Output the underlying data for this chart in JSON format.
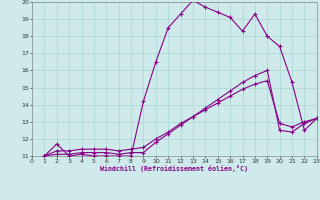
{
  "xlabel": "Windchill (Refroidissement éolien,°C)",
  "xlim": [
    0,
    23
  ],
  "ylim": [
    11,
    20
  ],
  "xticks": [
    0,
    1,
    2,
    3,
    4,
    5,
    6,
    7,
    8,
    9,
    10,
    11,
    12,
    13,
    14,
    15,
    16,
    17,
    18,
    19,
    20,
    21,
    22,
    23
  ],
  "yticks": [
    11,
    12,
    13,
    14,
    15,
    16,
    17,
    18,
    19,
    20
  ],
  "background_color": "#ceeaea",
  "grid_color": "#b0d8d8",
  "line_color": "#880088",
  "lines": [
    {
      "x": [
        1,
        2,
        3,
        4,
        5,
        6,
        7,
        8,
        9,
        10,
        11,
        12,
        13,
        14,
        15,
        16,
        17,
        18,
        19,
        20,
        21,
        22,
        23
      ],
      "y": [
        11.0,
        11.7,
        11.0,
        11.1,
        11.0,
        11.0,
        11.0,
        11.0,
        14.2,
        16.5,
        18.5,
        19.3,
        20.1,
        19.7,
        19.4,
        19.1,
        18.3,
        19.3,
        18.0,
        17.4,
        15.3,
        12.5,
        13.2
      ]
    },
    {
      "x": [
        1,
        2,
        3,
        4,
        5,
        6,
        7,
        8,
        9,
        10,
        11,
        12,
        13,
        14,
        15,
        16,
        17,
        18,
        19,
        20,
        21,
        22,
        23
      ],
      "y": [
        11.0,
        11.1,
        11.1,
        11.2,
        11.2,
        11.2,
        11.1,
        11.2,
        11.2,
        11.8,
        12.3,
        12.8,
        13.3,
        13.8,
        14.3,
        14.8,
        15.3,
        15.7,
        16.0,
        12.5,
        12.4,
        12.9,
        13.2
      ]
    },
    {
      "x": [
        1,
        2,
        3,
        4,
        5,
        6,
        7,
        8,
        9,
        10,
        11,
        12,
        13,
        14,
        15,
        16,
        17,
        18,
        19,
        20,
        21,
        22,
        23
      ],
      "y": [
        11.0,
        11.3,
        11.3,
        11.4,
        11.4,
        11.4,
        11.3,
        11.4,
        11.5,
        12.0,
        12.4,
        12.9,
        13.3,
        13.7,
        14.1,
        14.5,
        14.9,
        15.2,
        15.4,
        12.9,
        12.7,
        13.0,
        13.2
      ]
    }
  ]
}
